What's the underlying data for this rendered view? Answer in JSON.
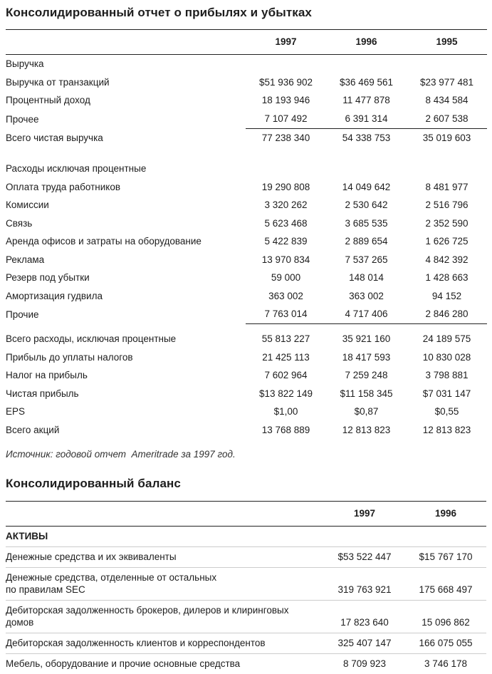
{
  "colors": {
    "text": "#1d1d1d",
    "rule": "#222222",
    "row_separator": "#cccccc"
  },
  "income_statement": {
    "title": "Консолидированный отчет о прибылях и убытках",
    "columns": [
      "1997",
      "1996",
      "1995"
    ],
    "rows": [
      {
        "label": "Выручка",
        "type": "section"
      },
      {
        "label": "Выручка от транзакций",
        "values": [
          "$51 936 902",
          "$36 469 561",
          "$23 977 481"
        ]
      },
      {
        "label": "Процентный доход",
        "values": [
          "18 193 946",
          "11 477 878",
          "8 434 584"
        ]
      },
      {
        "label": "Прочее",
        "values": [
          "7 107 492",
          "6 391 314",
          "2 607 538"
        ],
        "underline_after": true
      },
      {
        "label": "Всего чистая выручка",
        "values": [
          "77 238 340",
          "54 338 753",
          "35 019 603"
        ]
      },
      {
        "type": "spacer"
      },
      {
        "label": "Расходы исключая процентные",
        "type": "section"
      },
      {
        "label": "Оплата труда работников",
        "values": [
          "19 290 808",
          "14 049 642",
          "8 481 977"
        ]
      },
      {
        "label": "Комиссии",
        "values": [
          "3 320 262",
          "2 530 642",
          "2 516 796"
        ]
      },
      {
        "label": "Связь",
        "values": [
          "5 623 468",
          "3 685 535",
          "2 352 590"
        ]
      },
      {
        "label": "Аренда офисов и затраты на оборудование",
        "values": [
          "5 422 839",
          "2 889 654",
          "1 626 725"
        ]
      },
      {
        "label": "Реклама",
        "values": [
          "13 970 834",
          "7 537 265",
          "4 842 392"
        ]
      },
      {
        "label": "Резерв под убытки",
        "values": [
          "59 000",
          "148 014",
          "1 428 663"
        ]
      },
      {
        "label": "Амортизация гудвила",
        "values": [
          "363 002",
          "363 002",
          "94 152"
        ]
      },
      {
        "label": "Прочие",
        "values": [
          "7 763 014",
          "4 717 406",
          "2 846 280"
        ],
        "underline_after": true
      },
      {
        "type": "spacer",
        "small": true
      },
      {
        "label": "Всего расходы, исключая процентные",
        "values": [
          "55 813 227",
          "35 921 160",
          "24 189 575"
        ]
      },
      {
        "label": "Прибыль до уплаты налогов",
        "values": [
          "21 425 113",
          "18 417 593",
          "10 830 028"
        ]
      },
      {
        "label": "Налог на прибыль",
        "values": [
          "7 602 964",
          "7 259 248",
          "3 798 881"
        ]
      },
      {
        "label": "Чистая прибыль",
        "values": [
          "$13 822 149",
          "$11 158 345",
          "$7 031 147"
        ]
      },
      {
        "label": "EPS",
        "values": [
          "$1,00",
          "$0,87",
          "$0,55"
        ]
      },
      {
        "label": "Всего акций",
        "values": [
          "13 768 889",
          "12 813 823",
          "12 813 823"
        ]
      }
    ],
    "source_note": "Источник: годовой отчет  Ameritrade за 1997 год."
  },
  "balance_sheet": {
    "title": "Консолидированный баланс",
    "columns": [
      "1997",
      "1996"
    ],
    "rows": [
      {
        "label": "АКТИВЫ",
        "type": "section",
        "bold": true
      },
      {
        "label": "Денежные средства и их эквиваленты",
        "values": [
          "$53 522 447",
          "$15 767 170"
        ]
      },
      {
        "label": "Денежные средства, отделенные от остальных\nпо правилам SEC",
        "values": [
          "319 763 921",
          "175 668 497"
        ]
      },
      {
        "label": "Дебиторская задолженность брокеров, дилеров и клиринговых\nдомов",
        "values": [
          "17 823 640",
          "15 096 862"
        ]
      },
      {
        "label": "Дебиторская задолженность клиентов и корреспондентов",
        "values": [
          "325 407 147",
          "166 075 055"
        ]
      },
      {
        "label": "Мебель, оборудование и прочие основные средства",
        "values": [
          "8 709 923",
          "3 746 178"
        ]
      }
    ]
  }
}
